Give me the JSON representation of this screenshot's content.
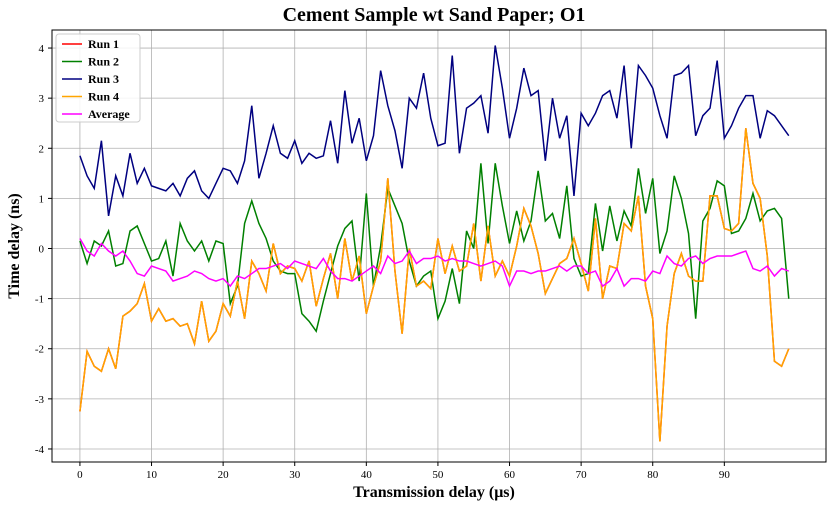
{
  "chart_data": {
    "type": "line",
    "title": "Cement Sample wt Sand Paper; O1",
    "x_label": "Transmission delay (μs)",
    "y_label": "Time delay (ns)",
    "x": [
      0,
      1,
      2,
      3,
      4,
      5,
      6,
      7,
      8,
      9,
      10,
      11,
      12,
      13,
      14,
      15,
      16,
      17,
      18,
      19,
      20,
      21,
      22,
      23,
      24,
      25,
      26,
      27,
      28,
      29,
      30,
      31,
      32,
      33,
      34,
      35,
      36,
      37,
      38,
      39,
      40,
      41,
      42,
      43,
      44,
      45,
      46,
      47,
      48,
      49,
      50,
      51,
      52,
      53,
      54,
      55,
      56,
      57,
      58,
      59,
      60,
      61,
      62,
      63,
      64,
      65,
      66,
      67,
      68,
      69,
      70,
      71,
      72,
      73,
      74,
      75,
      76,
      77,
      78,
      79,
      80,
      81,
      82,
      83,
      84,
      85,
      86,
      87,
      88,
      89,
      90,
      91,
      92,
      93,
      94,
      95,
      96,
      97,
      98,
      99
    ],
    "series": [
      {
        "name": "Run 1",
        "color": "#ff0000",
        "values": [
          -3.25,
          -2.05,
          -2.35,
          -2.45,
          -2.0,
          -2.4,
          -1.35,
          -1.25,
          -1.1,
          -0.7,
          -1.45,
          -1.2,
          -1.45,
          -1.4,
          -1.55,
          -1.5,
          -1.9,
          -1.05,
          -1.85,
          -1.65,
          -1.1,
          -1.35,
          -0.65,
          -1.4,
          -0.25,
          -0.5,
          -0.85,
          0.1,
          -0.5,
          -0.35,
          -0.4,
          -0.65,
          -0.25,
          -1.15,
          -0.6,
          -0.1,
          -1.0,
          0.2,
          -0.65,
          -0.15,
          -1.3,
          -0.75,
          -0.25,
          1.4,
          -0.45,
          -1.7,
          0.0,
          -0.75,
          -0.65,
          -0.8,
          0.2,
          -0.5,
          0.05,
          -0.45,
          -0.35,
          0.5,
          -0.65,
          0.45,
          -0.55,
          -0.25,
          -0.55,
          0.05,
          0.8,
          0.45,
          -0.1,
          -0.9,
          -0.6,
          -0.3,
          -0.2,
          0.2,
          -0.3,
          -0.85,
          0.6,
          -1.0,
          -0.35,
          -0.4,
          0.5,
          0.35,
          1.05,
          -0.75,
          -1.4,
          -3.85,
          -1.55,
          -0.5,
          -0.1,
          -0.55,
          -0.65,
          -0.65,
          1.05,
          1.05,
          0.4,
          0.35,
          0.5,
          2.4,
          1.3,
          1.0,
          -0.15,
          -2.25,
          -2.35,
          -2.0
        ]
      },
      {
        "name": "Run 2",
        "color": "#008000",
        "values": [
          0.15,
          -0.3,
          0.15,
          0.05,
          0.35,
          -0.35,
          -0.3,
          0.35,
          0.45,
          0.1,
          -0.25,
          -0.2,
          0.15,
          -0.55,
          0.5,
          0.15,
          -0.05,
          0.15,
          -0.25,
          0.15,
          0.1,
          -1.1,
          -0.75,
          0.5,
          0.95,
          0.5,
          0.2,
          -0.25,
          -0.45,
          -0.5,
          -0.5,
          -1.3,
          -1.45,
          -1.65,
          -1.05,
          -0.5,
          0.05,
          0.4,
          0.55,
          -0.65,
          1.1,
          -0.75,
          0.05,
          1.2,
          0.85,
          0.5,
          -0.25,
          -0.75,
          -0.55,
          -0.45,
          -1.4,
          -1.05,
          -0.4,
          -1.1,
          0.35,
          0.0,
          1.7,
          0.1,
          1.7,
          0.85,
          0.1,
          0.75,
          0.15,
          0.55,
          1.55,
          0.55,
          0.7,
          0.2,
          1.25,
          -0.2,
          -0.55,
          -0.5,
          0.9,
          -0.05,
          0.85,
          0.15,
          0.75,
          0.45,
          1.6,
          0.7,
          1.4,
          -0.1,
          0.35,
          1.45,
          1.0,
          0.3,
          -1.4,
          0.55,
          0.8,
          1.35,
          1.25,
          0.3,
          0.35,
          0.6,
          1.1,
          0.55,
          0.75,
          0.8,
          0.6,
          -1.0
        ]
      },
      {
        "name": "Run 3",
        "color": "#000080",
        "values": [
          1.85,
          1.45,
          1.2,
          2.15,
          0.65,
          1.45,
          1.05,
          1.9,
          1.3,
          1.6,
          1.25,
          1.2,
          1.15,
          1.3,
          1.05,
          1.4,
          1.55,
          1.15,
          1.0,
          1.3,
          1.6,
          1.55,
          1.3,
          1.75,
          2.85,
          1.4,
          1.9,
          2.45,
          1.9,
          1.8,
          2.15,
          1.7,
          1.9,
          1.8,
          1.85,
          2.55,
          1.7,
          3.15,
          2.1,
          2.6,
          1.75,
          2.25,
          3.55,
          2.85,
          2.35,
          1.6,
          3.0,
          2.8,
          3.5,
          2.6,
          2.05,
          2.1,
          3.85,
          1.9,
          2.8,
          2.9,
          3.05,
          2.3,
          4.05,
          3.2,
          2.2,
          2.8,
          3.6,
          3.05,
          3.15,
          1.75,
          3.0,
          2.2,
          2.65,
          1.05,
          2.7,
          2.45,
          2.7,
          3.05,
          3.15,
          2.6,
          3.65,
          2.0,
          3.65,
          3.45,
          3.2,
          2.65,
          2.2,
          3.45,
          3.5,
          3.65,
          2.25,
          2.65,
          2.8,
          3.75,
          2.2,
          2.45,
          2.8,
          3.05,
          3.05,
          2.2,
          2.75,
          2.65,
          2.45,
          2.25
        ]
      },
      {
        "name": "Run 4",
        "color": "#ffa500",
        "values": [
          -3.25,
          -2.05,
          -2.35,
          -2.45,
          -2.0,
          -2.4,
          -1.35,
          -1.25,
          -1.1,
          -0.7,
          -1.45,
          -1.2,
          -1.45,
          -1.4,
          -1.55,
          -1.5,
          -1.9,
          -1.05,
          -1.85,
          -1.65,
          -1.1,
          -1.35,
          -0.65,
          -1.4,
          -0.25,
          -0.5,
          -0.85,
          0.1,
          -0.5,
          -0.35,
          -0.4,
          -0.65,
          -0.25,
          -1.15,
          -0.6,
          -0.1,
          -1.0,
          0.2,
          -0.65,
          -0.15,
          -1.3,
          -0.75,
          -0.25,
          1.4,
          -0.45,
          -1.7,
          0.0,
          -0.75,
          -0.65,
          -0.8,
          0.2,
          -0.5,
          0.05,
          -0.45,
          -0.35,
          0.5,
          -0.65,
          0.45,
          -0.55,
          -0.25,
          -0.55,
          0.05,
          0.8,
          0.45,
          -0.1,
          -0.9,
          -0.6,
          -0.3,
          -0.2,
          0.2,
          -0.3,
          -0.85,
          0.6,
          -1.0,
          -0.35,
          -0.4,
          0.5,
          0.35,
          1.05,
          -0.75,
          -1.4,
          -3.85,
          -1.55,
          -0.5,
          -0.1,
          -0.55,
          -0.65,
          -0.65,
          1.05,
          1.05,
          0.4,
          0.35,
          0.5,
          2.4,
          1.3,
          1.0,
          -0.15,
          -2.25,
          -2.35,
          -2.0
        ]
      },
      {
        "name": "Average",
        "color": "#ff00ff",
        "values": [
          0.2,
          -0.05,
          -0.15,
          0.1,
          -0.05,
          -0.15,
          -0.05,
          -0.25,
          -0.5,
          -0.55,
          -0.35,
          -0.4,
          -0.45,
          -0.65,
          -0.6,
          -0.55,
          -0.45,
          -0.5,
          -0.6,
          -0.65,
          -0.6,
          -0.75,
          -0.55,
          -0.6,
          -0.5,
          -0.4,
          -0.4,
          -0.35,
          -0.3,
          -0.4,
          -0.25,
          -0.3,
          -0.35,
          -0.4,
          -0.2,
          -0.45,
          -0.6,
          -0.6,
          -0.65,
          -0.55,
          -0.45,
          -0.35,
          -0.5,
          -0.15,
          -0.3,
          -0.25,
          -0.05,
          -0.3,
          -0.2,
          -0.2,
          -0.15,
          -0.25,
          -0.2,
          -0.25,
          -0.25,
          -0.3,
          -0.35,
          -0.3,
          -0.25,
          -0.35,
          -0.75,
          -0.45,
          -0.45,
          -0.5,
          -0.45,
          -0.45,
          -0.4,
          -0.35,
          -0.45,
          -0.35,
          -0.35,
          -0.5,
          -0.45,
          -0.75,
          -0.65,
          -0.4,
          -0.75,
          -0.6,
          -0.6,
          -0.65,
          -0.45,
          -0.5,
          -0.15,
          -0.3,
          -0.35,
          -0.2,
          -0.15,
          -0.3,
          -0.2,
          -0.15,
          -0.15,
          -0.15,
          -0.1,
          -0.05,
          -0.4,
          -0.45,
          -0.35,
          -0.55,
          -0.4,
          -0.45
        ]
      }
    ],
    "xlim": [
      -3.9,
      104.2
    ],
    "ylim": [
      -4.26,
      4.36
    ],
    "xticks": [
      0,
      10,
      20,
      30,
      40,
      50,
      60,
      70,
      80,
      90
    ],
    "yticks": [
      -4,
      -3,
      -2,
      -1,
      0,
      1,
      2,
      3,
      4
    ],
    "grid": true,
    "legend": "upper-left"
  }
}
